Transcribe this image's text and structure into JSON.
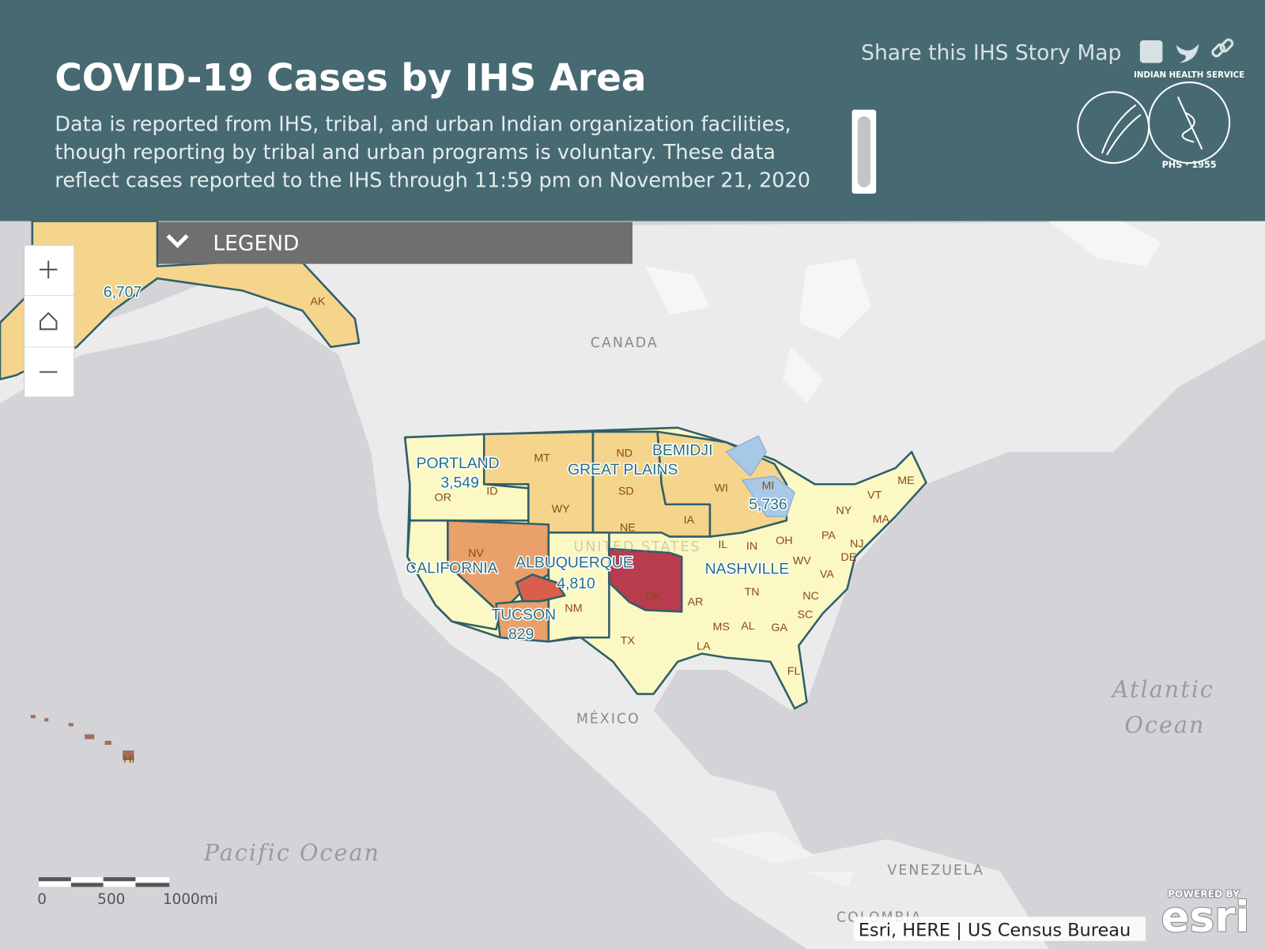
{
  "header": {
    "title": "COVID-19 Cases by IHS Area",
    "description": "Data is reported from IHS, tribal, and urban Indian organization facilities, though reporting by tribal and urban programs is voluntary. These data reflect cases reported to the IHS through 11:59 pm on November 21, 2020",
    "share_text": "Share this IHS Story Map",
    "logo_text": "INDIAN HEALTH SERVICE",
    "logo_year": "PHS · 1955"
  },
  "legend": {
    "title": "LEGEND"
  },
  "map": {
    "place_labels": [
      "CANADA",
      "UNITED STATES",
      "MÉXICO",
      "VENEZUELA",
      "COLOMBIA"
    ],
    "ocean_labels": [
      "Atlantic",
      "Ocean",
      "Pacific Ocean"
    ],
    "areas": [
      {
        "name": "PORTLAND",
        "cases": "3,549"
      },
      {
        "name": "CALIFORNIA"
      },
      {
        "name": "TUCSON",
        "cases": "829"
      },
      {
        "name": "ALBUQUERQUE",
        "cases": "4,810"
      },
      {
        "name": "GREAT PLAINS"
      },
      {
        "name": "BEMIDJI",
        "cases": "5,736"
      },
      {
        "name": "NASHVILLE"
      }
    ],
    "alaska_cases": "6,707",
    "state_labels": [
      "AK",
      "MT",
      "ND",
      "SD",
      "WY",
      "NE",
      "IA",
      "WI",
      "MI",
      "OR",
      "ID",
      "NV",
      "NM",
      "OK",
      "TX",
      "IL",
      "IN",
      "OH",
      "PA",
      "NY",
      "VT",
      "ME",
      "MA",
      "NJ",
      "DE",
      "WV",
      "VA",
      "NC",
      "SC",
      "TN",
      "AR",
      "MS",
      "AL",
      "GA",
      "LA",
      "FL",
      "HI"
    ],
    "scale_labels": [
      "0",
      "500",
      "1000mi"
    ],
    "attribution": "Esri, HERE | US Census Bureau",
    "powered_by": "POWERED BY",
    "esri": "esri"
  }
}
